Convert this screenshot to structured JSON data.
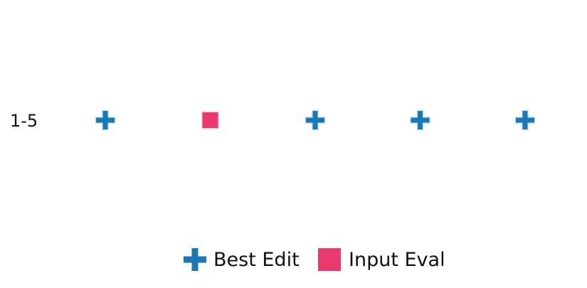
{
  "chart_data": {
    "type": "scatter",
    "rows": [
      {
        "label": "1-5",
        "cells": [
          "Best Edit",
          "Input Eval",
          "Best Edit",
          "Best Edit",
          "Best Edit"
        ]
      }
    ],
    "legend": {
      "placement": "bottom-center",
      "entries": [
        {
          "name": "Best Edit",
          "marker": "plus",
          "color": "#1a79b4"
        },
        {
          "name": "Input Eval",
          "marker": "square",
          "color": "#e9396d"
        }
      ]
    }
  }
}
